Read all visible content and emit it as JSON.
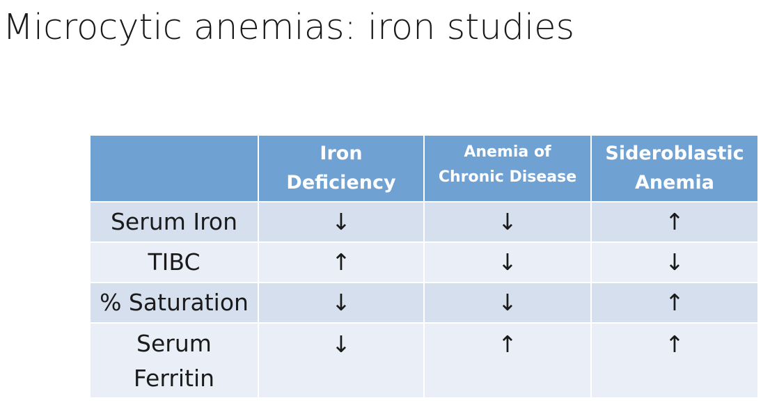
{
  "slide": {
    "title": "Microcytic anemias: iron studies"
  },
  "table": {
    "headers": [
      {
        "lines": [
          ""
        ]
      },
      {
        "lines": [
          "Iron",
          "Deficiency"
        ]
      },
      {
        "lines": [
          "Anemia of",
          "Chronic Disease"
        ]
      },
      {
        "lines": [
          "Sideroblastic",
          "Anemia"
        ]
      }
    ],
    "rows": [
      {
        "label_lines": [
          "Serum Iron"
        ],
        "values": [
          "↓",
          "↓",
          "↑"
        ]
      },
      {
        "label_lines": [
          "TIBC"
        ],
        "values": [
          "↑",
          "↓",
          "↓"
        ]
      },
      {
        "label_lines": [
          "% Saturation"
        ],
        "values": [
          "↓",
          "↓",
          "↑"
        ]
      },
      {
        "label_lines": [
          "Serum",
          "Ferritin"
        ],
        "values": [
          "↓",
          "↑",
          "↑"
        ]
      }
    ]
  },
  "colors": {
    "header_bg": "#6fa1d3",
    "row_odd_bg": "#d6dfee",
    "row_even_bg": "#eaeff7"
  }
}
